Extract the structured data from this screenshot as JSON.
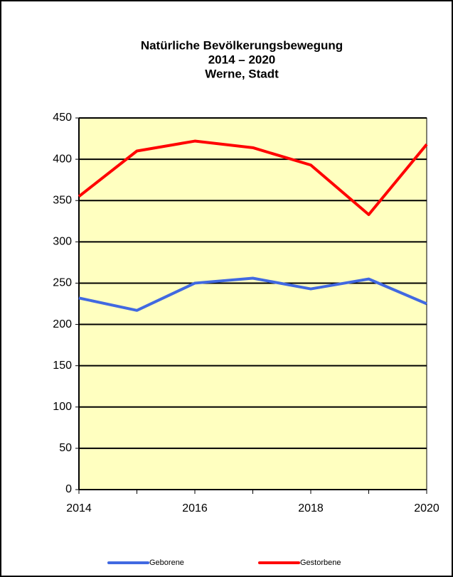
{
  "chart_data": {
    "type": "line",
    "title": [
      "Natürliche Bevölkerungsbewegung",
      "2014 – 2020",
      "Werne, Stadt"
    ],
    "x": [
      2014,
      2015,
      2016,
      2017,
      2018,
      2019,
      2020
    ],
    "series": [
      {
        "name": "Geborene",
        "color": "#4169e1",
        "values": [
          232,
          217,
          250,
          256,
          243,
          255,
          225
        ]
      },
      {
        "name": "Gestorbene",
        "color": "#ff0000",
        "values": [
          355,
          410,
          422,
          414,
          393,
          333,
          418
        ]
      }
    ],
    "xlim": [
      2014,
      2020
    ],
    "xticks": [
      2014,
      2016,
      2018,
      2020
    ],
    "ylim": [
      0,
      450
    ],
    "yticks": [
      0,
      50,
      100,
      150,
      200,
      250,
      300,
      350,
      400,
      450
    ],
    "grid": true,
    "background": "#ffffc0",
    "legend": "bottom"
  }
}
